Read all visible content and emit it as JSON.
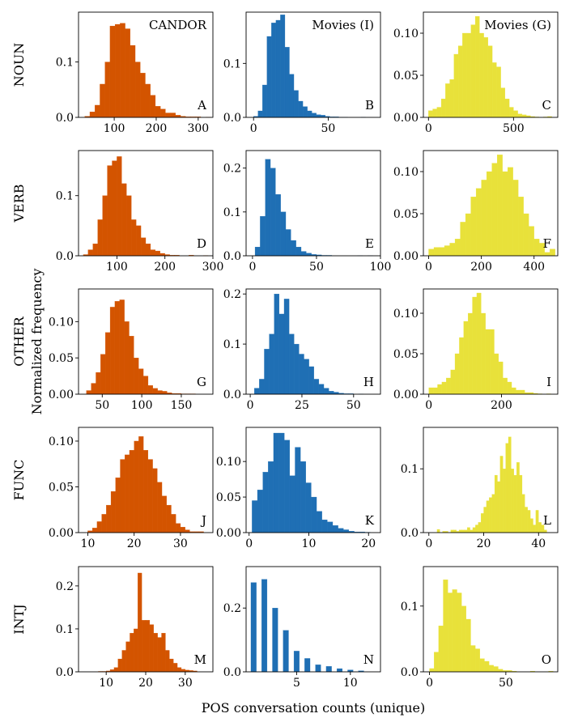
{
  "figure": {
    "xlabel": "POS conversation counts (unique)",
    "ylabel": "Normalized frequency",
    "column_titles": [
      "CANDOR",
      "Movies (I)",
      "Movies (G)"
    ],
    "row_labels": [
      "NOUN",
      "VERB",
      "OTHER",
      "FUNC",
      "INTJ"
    ],
    "colors": {
      "CANDOR": "#d35400",
      "Movies (I)": "#1f6fb4",
      "Movies (G)": "#e8e13a"
    }
  },
  "chart_data": [
    {
      "type": "bar",
      "panel": "A",
      "row": "NOUN",
      "col": "CANDOR",
      "xlim": [
        15,
        335
      ],
      "ylim": [
        0,
        0.19
      ],
      "xticks": [
        100,
        200,
        300
      ],
      "yticks": [
        0.0,
        0.1
      ],
      "ytick_labels": [
        "0.0",
        "0.1"
      ],
      "bin_start": 30,
      "bin_width": 12,
      "values": [
        0.002,
        0.01,
        0.022,
        0.06,
        0.1,
        0.165,
        0.168,
        0.17,
        0.16,
        0.13,
        0.1,
        0.08,
        0.06,
        0.04,
        0.02,
        0.015,
        0.008,
        0.008,
        0.004,
        0.002,
        0.001,
        0.001,
        0.001,
        0,
        0.0005
      ]
    },
    {
      "type": "bar",
      "panel": "B",
      "row": "NOUN",
      "col": "Movies (I)",
      "xlim": [
        -5,
        85
      ],
      "ylim": [
        0,
        0.195
      ],
      "xticks": [
        0,
        50
      ],
      "yticks": [
        0.0,
        0.1
      ],
      "ytick_labels": [
        "0.0",
        "0.1"
      ],
      "bin_start": 0,
      "bin_width": 3,
      "values": [
        0.002,
        0.012,
        0.06,
        0.15,
        0.175,
        0.18,
        0.19,
        0.13,
        0.08,
        0.05,
        0.03,
        0.02,
        0.012,
        0.008,
        0.005,
        0.004,
        0.002,
        0.001,
        0.001,
        0.0005,
        0.0005,
        0,
        0,
        0,
        0.0005
      ]
    },
    {
      "type": "bar",
      "panel": "C",
      "row": "NOUN",
      "col": "Movies (G)",
      "xlim": [
        -30,
        760
      ],
      "ylim": [
        0,
        0.125
      ],
      "xticks": [
        0,
        500
      ],
      "yticks": [
        0.0,
        0.05,
        0.1
      ],
      "ytick_labels": [
        "0.00",
        "0.05",
        "0.10"
      ],
      "bin_start": 0,
      "bin_width": 25,
      "values": [
        0.008,
        0.01,
        0.012,
        0.022,
        0.04,
        0.045,
        0.075,
        0.085,
        0.1,
        0.1,
        0.11,
        0.12,
        0.1,
        0.095,
        0.085,
        0.065,
        0.06,
        0.035,
        0.022,
        0.012,
        0.008,
        0.004,
        0.003,
        0.002,
        0.001,
        0.0005,
        0,
        0.0005,
        0.001
      ]
    },
    {
      "type": "bar",
      "panel": "D",
      "row": "VERB",
      "col": "CANDOR",
      "xlim": [
        20,
        300
      ],
      "ylim": [
        0,
        0.175
      ],
      "xticks": [
        100,
        200,
        300
      ],
      "yticks": [
        0.0,
        0.1
      ],
      "ytick_labels": [
        "0.0",
        "0.1"
      ],
      "bin_start": 30,
      "bin_width": 10,
      "values": [
        0.002,
        0.01,
        0.02,
        0.06,
        0.1,
        0.15,
        0.158,
        0.165,
        0.12,
        0.1,
        0.06,
        0.05,
        0.03,
        0.02,
        0.01,
        0.008,
        0.004,
        0.002,
        0.001,
        0.001,
        0,
        0,
        0.001,
        0,
        0,
        0.0005
      ]
    },
    {
      "type": "bar",
      "panel": "E",
      "row": "VERB",
      "col": "Movies (I)",
      "xlim": [
        -5,
        100
      ],
      "ylim": [
        0,
        0.24
      ],
      "xticks": [
        0,
        50,
        100
      ],
      "yticks": [
        0.0,
        0.1,
        0.2
      ],
      "ytick_labels": [
        "0.0",
        "0.1",
        "0.2"
      ],
      "bin_start": 2,
      "bin_width": 4,
      "values": [
        0.02,
        0.09,
        0.22,
        0.2,
        0.14,
        0.1,
        0.06,
        0.035,
        0.02,
        0.01,
        0.006,
        0.003,
        0.002,
        0.001,
        0.001,
        0,
        0,
        0,
        0,
        0,
        0.0005,
        0,
        0.0005
      ]
    },
    {
      "type": "bar",
      "panel": "F",
      "row": "VERB",
      "col": "Movies (G)",
      "xlim": [
        -20,
        490
      ],
      "ylim": [
        0,
        0.125
      ],
      "xticks": [
        0,
        200,
        400
      ],
      "yticks": [
        0.0,
        0.05,
        0.1
      ],
      "ytick_labels": [
        "0.00",
        "0.05",
        "0.10"
      ],
      "bin_start": 0,
      "bin_width": 20,
      "values": [
        0.008,
        0.01,
        0.01,
        0.012,
        0.015,
        0.02,
        0.04,
        0.05,
        0.07,
        0.08,
        0.09,
        0.1,
        0.11,
        0.12,
        0.1,
        0.105,
        0.09,
        0.07,
        0.05,
        0.035,
        0.02,
        0.015,
        0.004,
        0.008
      ]
    },
    {
      "type": "bar",
      "panel": "G",
      "row": "OTHER",
      "col": "CANDOR",
      "xlim": [
        20,
        190
      ],
      "ylim": [
        0,
        0.145
      ],
      "xticks": [
        50,
        100,
        150
      ],
      "yticks": [
        0.0,
        0.05,
        0.1
      ],
      "ytick_labels": [
        "0.00",
        "0.05",
        "0.10"
      ],
      "bin_start": 30,
      "bin_width": 6,
      "values": [
        0.005,
        0.015,
        0.03,
        0.055,
        0.085,
        0.12,
        0.128,
        0.13,
        0.1,
        0.08,
        0.05,
        0.035,
        0.025,
        0.012,
        0.008,
        0.005,
        0.004,
        0.002,
        0.001,
        0.001,
        0.0005,
        0.0005,
        0.0005
      ]
    },
    {
      "type": "bar",
      "panel": "H",
      "row": "OTHER",
      "col": "Movies (I)",
      "xlim": [
        -2,
        63
      ],
      "ylim": [
        0,
        0.21
      ],
      "xticks": [
        0,
        25,
        50
      ],
      "yticks": [
        0.0,
        0.1,
        0.2
      ],
      "ytick_labels": [
        "0.0",
        "0.1",
        "0.2"
      ],
      "bin_start": 2,
      "bin_width": 2.4,
      "values": [
        0.012,
        0.03,
        0.09,
        0.12,
        0.2,
        0.16,
        0.19,
        0.12,
        0.1,
        0.08,
        0.07,
        0.055,
        0.03,
        0.02,
        0.012,
        0.006,
        0.004,
        0.002,
        0.001,
        0.001,
        0,
        0.0005
      ]
    },
    {
      "type": "bar",
      "panel": "I",
      "row": "OTHER",
      "col": "Movies (G)",
      "xlim": [
        -15,
        355
      ],
      "ylim": [
        0,
        0.13
      ],
      "xticks": [
        0,
        200
      ],
      "yticks": [
        0.0,
        0.05,
        0.1
      ],
      "ytick_labels": [
        "0.00",
        "0.05",
        "0.10"
      ],
      "bin_start": 0,
      "bin_width": 12,
      "values": [
        0.008,
        0.008,
        0.012,
        0.015,
        0.02,
        0.03,
        0.05,
        0.07,
        0.09,
        0.1,
        0.12,
        0.125,
        0.1,
        0.08,
        0.08,
        0.05,
        0.04,
        0.02,
        0.015,
        0.008,
        0.005,
        0.005,
        0.002,
        0.002,
        0.001,
        0.0005,
        0,
        0.0005
      ]
    },
    {
      "type": "bar",
      "panel": "J",
      "row": "FUNC",
      "col": "CANDOR",
      "xlim": [
        8,
        37
      ],
      "ylim": [
        0,
        0.115
      ],
      "xticks": [
        10,
        20,
        30
      ],
      "yticks": [
        0.0,
        0.05,
        0.1
      ],
      "ytick_labels": [
        "0.00",
        "0.05",
        "0.10"
      ],
      "bin_start": 10,
      "bin_width": 1,
      "values": [
        0.002,
        0.005,
        0.012,
        0.02,
        0.03,
        0.045,
        0.06,
        0.08,
        0.085,
        0.09,
        0.1,
        0.105,
        0.09,
        0.08,
        0.07,
        0.055,
        0.04,
        0.03,
        0.02,
        0.01,
        0.006,
        0.003,
        0.001,
        0.001,
        0.001
      ]
    },
    {
      "type": "bar",
      "panel": "K",
      "row": "FUNC",
      "col": "Movies (I)",
      "xlim": [
        -0.5,
        22
      ],
      "ylim": [
        0,
        0.148
      ],
      "xticks": [
        0,
        10,
        20
      ],
      "yticks": [
        0.0,
        0.05,
        0.1
      ],
      "ytick_labels": [
        "0.00",
        "0.05",
        "0.10"
      ],
      "bin_start": 0.5,
      "bin_width": 0.9,
      "values": [
        0.045,
        0.06,
        0.085,
        0.1,
        0.14,
        0.14,
        0.13,
        0.08,
        0.12,
        0.1,
        0.07,
        0.05,
        0.03,
        0.018,
        0.015,
        0.01,
        0.006,
        0.004,
        0.002,
        0.001,
        0.001,
        0.0005
      ]
    },
    {
      "type": "bar",
      "panel": "L",
      "row": "FUNC",
      "col": "Movies (G)",
      "xlim": [
        -2,
        47
      ],
      "ylim": [
        0,
        0.165
      ],
      "xticks": [
        0,
        20,
        40
      ],
      "yticks": [
        0.0,
        0.1
      ],
      "ytick_labels": [
        "0.0",
        "0.1"
      ],
      "bin_start": 3,
      "bin_width": 1,
      "values": [
        0.005,
        0,
        0.002,
        0.002,
        0,
        0.004,
        0.004,
        0.002,
        0.004,
        0.004,
        0.004,
        0.008,
        0.004,
        0.008,
        0.012,
        0.016,
        0.03,
        0.04,
        0.05,
        0.055,
        0.06,
        0.09,
        0.08,
        0.12,
        0.1,
        0.14,
        0.15,
        0.1,
        0.09,
        0.11,
        0.09,
        0.06,
        0.04,
        0.035,
        0.022,
        0.012,
        0.035,
        0.016,
        0.012,
        0.004
      ]
    },
    {
      "type": "bar",
      "panel": "M",
      "row": "INTJ",
      "col": "CANDOR",
      "xlim": [
        3,
        37
      ],
      "ylim": [
        0,
        0.245
      ],
      "xticks": [
        10,
        20,
        30
      ],
      "yticks": [
        0.0,
        0.1,
        0.2
      ],
      "ytick_labels": [
        "0.0",
        "0.1",
        "0.2"
      ],
      "bin_start": 8,
      "bin_width": 1,
      "values": [
        0.001,
        0.001,
        0.002,
        0.005,
        0.01,
        0.03,
        0.05,
        0.07,
        0.09,
        0.1,
        0.23,
        0.12,
        0.12,
        0.11,
        0.09,
        0.08,
        0.09,
        0.05,
        0.03,
        0.02,
        0.01,
        0.006,
        0.004,
        0.003,
        0.002
      ]
    },
    {
      "type": "bar",
      "panel": "N",
      "row": "INTJ",
      "col": "Movies (I)",
      "xlim": [
        0.3,
        12.8
      ],
      "ylim": [
        0,
        0.33
      ],
      "xticks": [
        5,
        10
      ],
      "yticks": [
        0.0,
        0.2
      ],
      "ytick_labels": [
        "0.0",
        "0.2"
      ],
      "bar_width": 0.5,
      "x": [
        1,
        2,
        3,
        4,
        5,
        6,
        7,
        8,
        9,
        10,
        11
      ],
      "values": [
        0.28,
        0.29,
        0.2,
        0.13,
        0.065,
        0.042,
        0.022,
        0.017,
        0.01,
        0.006,
        0.003
      ]
    },
    {
      "type": "bar",
      "panel": "O",
      "row": "INTJ",
      "col": "Movies (G)",
      "xlim": [
        -4,
        84
      ],
      "ylim": [
        0,
        0.16
      ],
      "xticks": [
        0,
        50
      ],
      "yticks": [
        0.0,
        0.1
      ],
      "ytick_labels": [
        "0.0",
        "0.1"
      ],
      "bin_start": 0,
      "bin_width": 3,
      "values": [
        0.005,
        0.03,
        0.07,
        0.14,
        0.12,
        0.125,
        0.12,
        0.1,
        0.08,
        0.04,
        0.035,
        0.02,
        0.016,
        0.01,
        0.008,
        0.004,
        0.002,
        0.002,
        0.001,
        0,
        0,
        0,
        0.001,
        0,
        0,
        0,
        0.001
      ]
    }
  ]
}
